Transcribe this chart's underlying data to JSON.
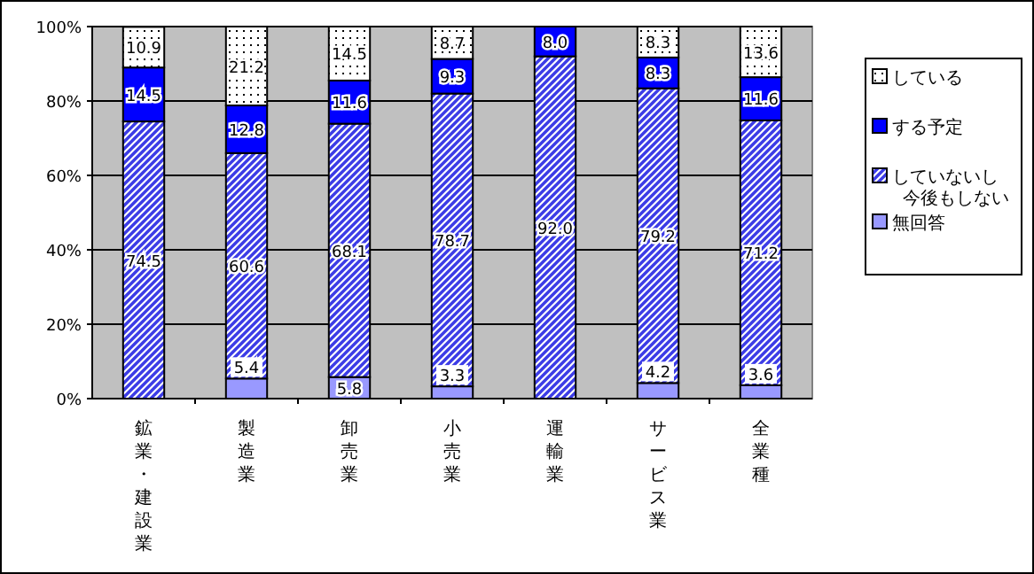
{
  "chart_data": {
    "type": "bar",
    "stacked": true,
    "categories": [
      "鉱業・建設業",
      "製造業",
      "卸売業",
      "小売業",
      "運輸業",
      "サービス業",
      "全業種"
    ],
    "series": [
      {
        "name": "無回答",
        "color": "#9999ff",
        "values": [
          0,
          5.4,
          5.8,
          3.3,
          0,
          4.2,
          3.6
        ],
        "value_labels": [
          null,
          "5.4",
          "5.8",
          "3.3",
          null,
          "4.2",
          "3.6"
        ]
      },
      {
        "name": "していないし今後もしない",
        "color": "#3c3ce6",
        "values": [
          74.5,
          60.6,
          68.1,
          78.7,
          92.0,
          79.2,
          71.2
        ],
        "value_labels": [
          "74.5",
          "60.6",
          "68.1",
          "78.7",
          "92.0",
          "79.2",
          "71.2"
        ]
      },
      {
        "name": "する予定",
        "color": "#0000ff",
        "values": [
          14.5,
          12.8,
          11.6,
          9.3,
          8.0,
          8.3,
          11.6
        ],
        "value_labels": [
          "14.5",
          "12.8",
          "11.6",
          "9.3",
          "8.0",
          "8.3",
          "11.6"
        ]
      },
      {
        "name": "している",
        "color": "#ffffff",
        "values": [
          10.9,
          21.2,
          14.5,
          8.7,
          0,
          8.3,
          13.6
        ],
        "value_labels": [
          "10.9",
          "21.2",
          "14.5",
          "8.7",
          null,
          "8.3",
          "13.6"
        ]
      }
    ],
    "ylim": [
      0,
      100
    ],
    "yticks": [
      {
        "value": 0,
        "label": "0%"
      },
      {
        "value": 20,
        "label": "20%"
      },
      {
        "value": 40,
        "label": "40%"
      },
      {
        "value": 60,
        "label": "60%"
      },
      {
        "value": 80,
        "label": "80%"
      },
      {
        "value": 100,
        "label": "100%"
      }
    ],
    "grid": "y",
    "legend": "right"
  }
}
